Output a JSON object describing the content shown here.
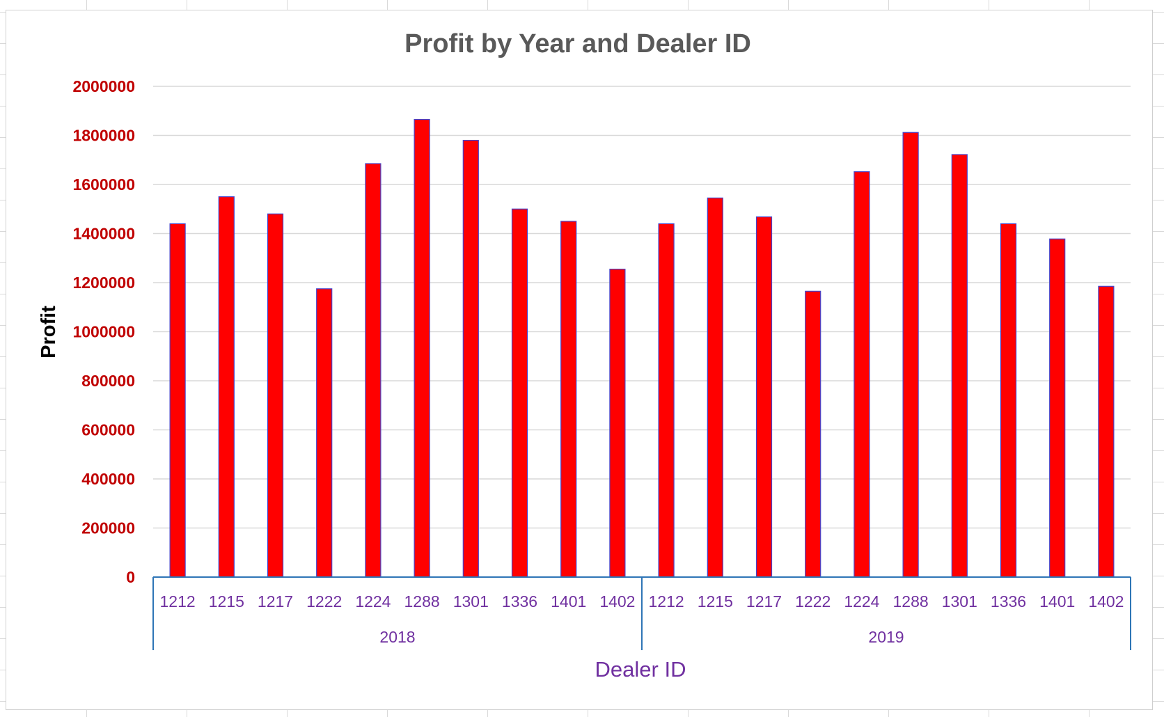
{
  "chart_data": {
    "type": "bar",
    "title": "Profit by Year and Dealer ID",
    "xlabel": "Dealer ID",
    "ylabel": "Profit",
    "ylim": [
      0,
      2000000
    ],
    "yticks": [
      0,
      200000,
      400000,
      600000,
      800000,
      1000000,
      1200000,
      1400000,
      1600000,
      1800000,
      2000000
    ],
    "groups": [
      {
        "label": "2018",
        "categories": [
          "1212",
          "1215",
          "1217",
          "1222",
          "1224",
          "1288",
          "1301",
          "1336",
          "1401",
          "1402"
        ],
        "values": [
          1440000,
          1550000,
          1480000,
          1175000,
          1685000,
          1865000,
          1780000,
          1500000,
          1450000,
          1255000
        ]
      },
      {
        "label": "2019",
        "categories": [
          "1212",
          "1215",
          "1217",
          "1222",
          "1224",
          "1288",
          "1301",
          "1336",
          "1401",
          "1402"
        ],
        "values": [
          1440000,
          1545000,
          1468000,
          1165000,
          1652000,
          1812000,
          1722000,
          1440000,
          1378000,
          1185000
        ]
      }
    ],
    "grid": true,
    "legend": "none",
    "colors": {
      "bar_fill": "#ff0000",
      "bar_outline": "#4444cc",
      "ytick_text": "#c00000",
      "xtick_text": "#7030a0",
      "axis_line": "#2e75b6",
      "gridline": "#d9d9d9"
    }
  }
}
